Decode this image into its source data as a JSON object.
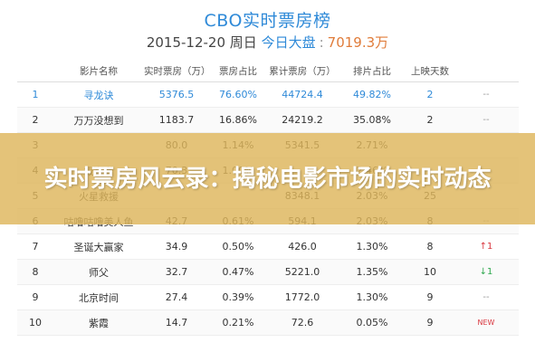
{
  "header": {
    "title": "CBO实时票房榜",
    "date": "2015-12-20 周日",
    "gross_label": "今日大盘",
    "total": "7019.3万"
  },
  "table": {
    "columns": [
      "影片名称",
      "实时票房（万）",
      "票房占比",
      "累计票房（万）",
      "排片占比",
      "上映天数",
      ""
    ],
    "rows": [
      {
        "rank": "1",
        "name": "寻龙诀",
        "gross": "5376.5",
        "share": "76.60%",
        "cum": "44724.4",
        "seat": "49.82%",
        "days": "2",
        "trend": "--",
        "trend_type": "flat"
      },
      {
        "rank": "2",
        "name": "万万没想到",
        "gross": "1183.7",
        "share": "16.86%",
        "cum": "24219.2",
        "seat": "35.08%",
        "days": "2",
        "trend": "--",
        "trend_type": "flat"
      },
      {
        "rank": "3",
        "name": "",
        "gross": "80.0",
        "share": "1.14%",
        "cum": "5341.5",
        "seat": "2.71%",
        "days": "",
        "trend": "",
        "trend_type": "flat"
      },
      {
        "rank": "4",
        "name": "极盗者",
        "gross": "70.3",
        "share": "1.00%",
        "cum": "",
        "seat": "2.46%",
        "days": "",
        "trend": "",
        "trend_type": "flat"
      },
      {
        "rank": "5",
        "name": "火星救援",
        "gross": "",
        "share": "",
        "cum": "8348.1",
        "seat": "2.03%",
        "days": "25",
        "trend": "",
        "trend_type": "flat"
      },
      {
        "rank": "6",
        "name": "咕噜咕噜美人鱼",
        "gross": "42.7",
        "share": "0.61%",
        "cum": "594.1",
        "seat": "2.03%",
        "days": "8",
        "trend": "--",
        "trend_type": "flat"
      },
      {
        "rank": "7",
        "name": "圣诞大赢家",
        "gross": "34.9",
        "share": "0.50%",
        "cum": "426.0",
        "seat": "1.30%",
        "days": "8",
        "trend": "↑1",
        "trend_type": "up"
      },
      {
        "rank": "8",
        "name": "师父",
        "gross": "32.7",
        "share": "0.47%",
        "cum": "5221.0",
        "seat": "1.35%",
        "days": "10",
        "trend": "↓1",
        "trend_type": "down"
      },
      {
        "rank": "9",
        "name": "北京时间",
        "gross": "27.4",
        "share": "0.39%",
        "cum": "1772.0",
        "seat": "1.30%",
        "days": "9",
        "trend": "--",
        "trend_type": "flat"
      },
      {
        "rank": "10",
        "name": "紫霞",
        "gross": "14.7",
        "share": "0.21%",
        "cum": "72.6",
        "seat": "0.05%",
        "days": "9",
        "trend": "NEW",
        "trend_type": "new"
      }
    ]
  },
  "banner": {
    "text": "实时票房风云录：揭秘电影市场的实时动态"
  },
  "colors": {
    "accent": "#2f8ad8",
    "total": "#e07c3a",
    "banner": "#deb65c",
    "up": "#d9363e",
    "down": "#2fa84f"
  }
}
